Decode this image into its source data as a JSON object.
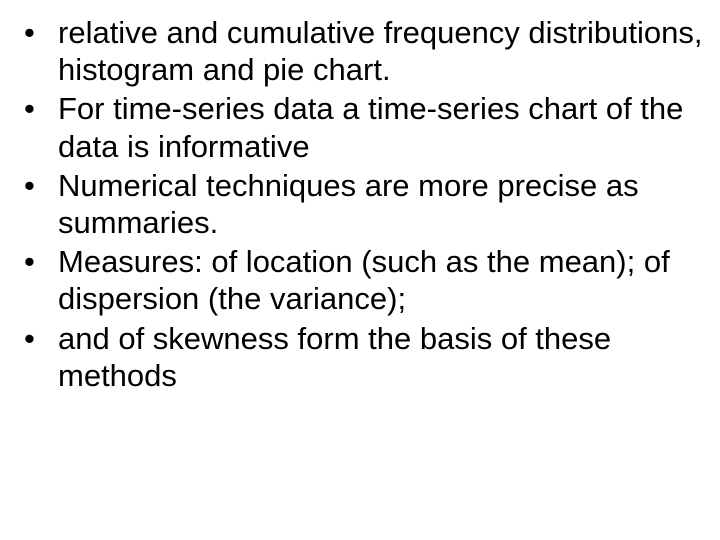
{
  "slide": {
    "text_color": "#000000",
    "background_color": "#ffffff",
    "font_family": "Arial",
    "font_size_pt": 23,
    "bullets": [
      "relative and cumulative frequency distributions, histogram and pie chart.",
      "For time-series data a time-series chart of the data is informative",
      " Numerical techniques are more precise as summaries.",
      " Measures: of location (such as the mean); of dispersion (the variance);",
      " and of skewness form the basis of these methods"
    ]
  }
}
